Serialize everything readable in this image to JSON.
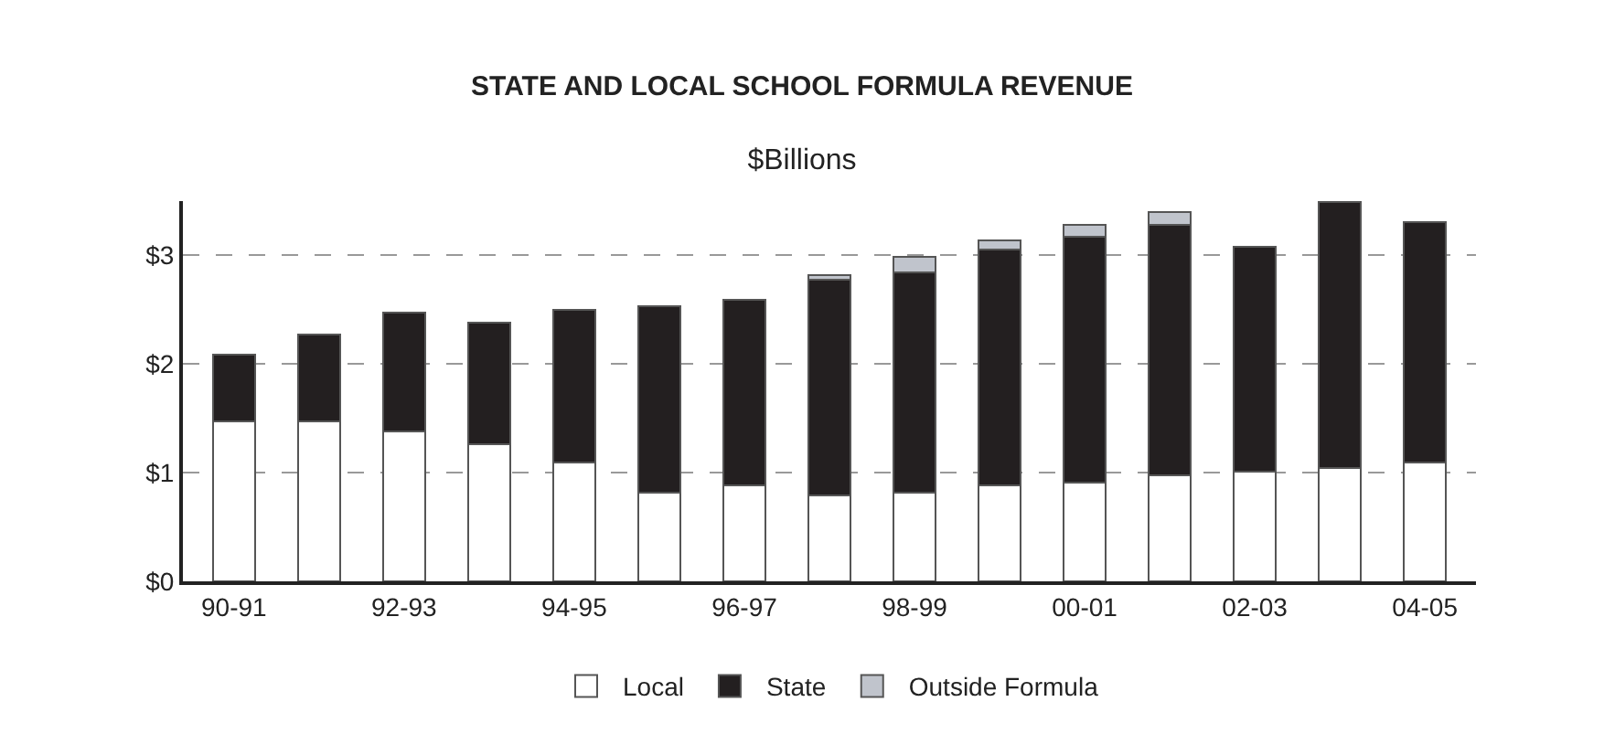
{
  "chart_data": {
    "type": "bar",
    "title": "STATE AND LOCAL SCHOOL FORMULA REVENUE",
    "subtitle": "$Billions",
    "categories": [
      "90-91",
      null,
      "92-93",
      null,
      "94-95",
      null,
      "96-97",
      null,
      "98-99",
      null,
      "00-01",
      null,
      "02-03",
      null,
      "04-05"
    ],
    "stacked": true,
    "series": [
      {
        "name": "Local",
        "color": "#ffffff",
        "values": [
          1.47,
          1.47,
          1.38,
          1.26,
          1.09,
          0.82,
          0.88,
          0.79,
          0.82,
          0.88,
          0.91,
          0.98,
          1.01,
          1.04,
          1.09
        ]
      },
      {
        "name": "State",
        "color": "#231f20",
        "values": [
          0.62,
          0.8,
          1.09,
          1.12,
          1.41,
          1.71,
          1.71,
          1.99,
          2.02,
          2.17,
          2.26,
          2.3,
          2.07,
          2.45,
          2.22
        ]
      },
      {
        "name": "Outside Formula",
        "color": "#c0c4cc",
        "values": [
          null,
          null,
          null,
          null,
          null,
          null,
          null,
          0.04,
          0.15,
          0.09,
          0.11,
          0.12,
          null,
          null,
          null
        ]
      }
    ],
    "ylim": [
      0,
      3.5
    ],
    "yticks": [
      {
        "value": 0,
        "label": "$0"
      },
      {
        "value": 1,
        "label": "$1"
      },
      {
        "value": 2,
        "label": "$2"
      },
      {
        "value": 3,
        "label": "$3"
      }
    ],
    "grid": "y",
    "legend": "bottom"
  }
}
